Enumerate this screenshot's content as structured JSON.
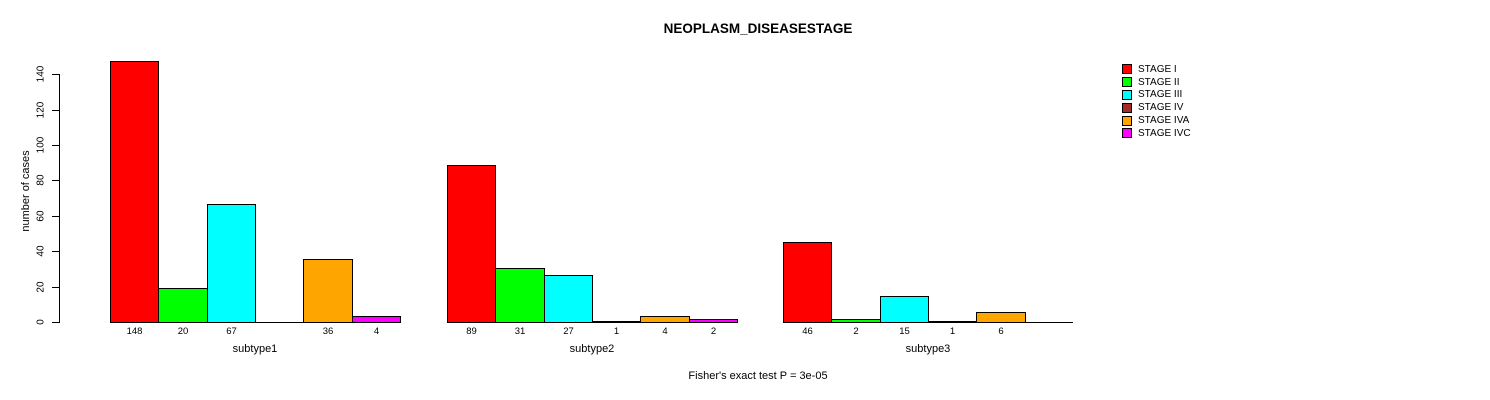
{
  "footer": "Fisher's exact test P = 3e-05",
  "chart_data": {
    "type": "bar",
    "grouped": true,
    "title": "NEOPLASM_DISEASESTAGE",
    "xlabel": "",
    "ylabel": "number of cases",
    "ylim": [
      0,
      148
    ],
    "yticks": [
      0,
      20,
      40,
      60,
      80,
      100,
      120,
      140
    ],
    "grid": false,
    "legend_position": "right",
    "categories": [
      "subtype1",
      "subtype2",
      "subtype3"
    ],
    "series": [
      {
        "name": "STAGE I",
        "color": "#FF0000",
        "values": [
          148,
          89,
          46
        ]
      },
      {
        "name": "STAGE II",
        "color": "#00FF00",
        "values": [
          20,
          31,
          2
        ]
      },
      {
        "name": "STAGE III",
        "color": "#00FFFF",
        "values": [
          67,
          27,
          15
        ]
      },
      {
        "name": "STAGE IV",
        "color": "#A52A2A",
        "values": [
          0,
          1,
          1
        ]
      },
      {
        "name": "STAGE IVA",
        "color": "#FFA500",
        "values": [
          36,
          4,
          6
        ]
      },
      {
        "name": "STAGE IVC",
        "color": "#FF00FF",
        "values": [
          4,
          2,
          0
        ]
      }
    ],
    "value_labels": [
      [
        "148",
        "20",
        "67",
        "",
        "36",
        "4"
      ],
      [
        "89",
        "31",
        "27",
        "1",
        "4",
        "2"
      ],
      [
        "46",
        "2",
        "15",
        "1",
        "6",
        ""
      ]
    ],
    "annotation": "Fisher's exact test P = 3e-05"
  }
}
